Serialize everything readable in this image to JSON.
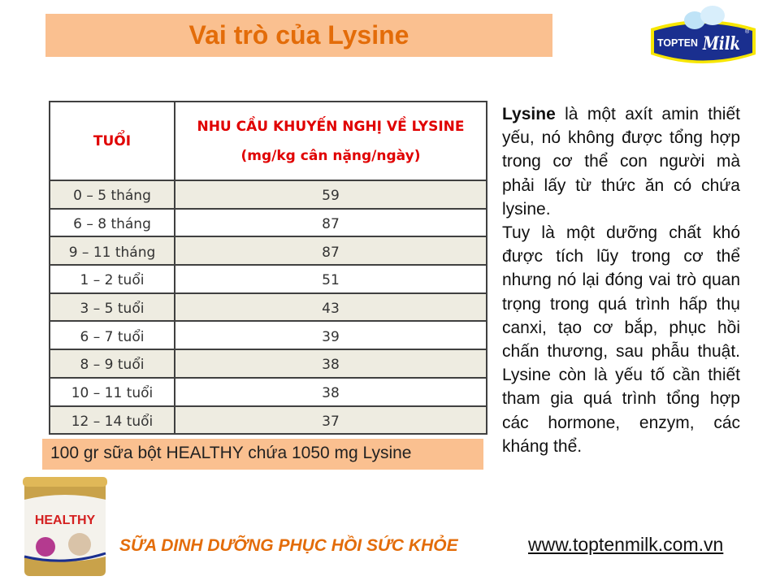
{
  "title": "Vai trò của Lysine",
  "logo": {
    "text_left": "TOPTEN",
    "text_right": "Milk",
    "registered": "®",
    "colors": {
      "navy": "#1a2f8f",
      "yellow": "#f7e600"
    }
  },
  "table": {
    "headers": {
      "age": "TUỔI",
      "requirement_line1": "NHU CẦU KHUYẾN NGHỊ VỀ LYSINE",
      "requirement_line2": "(mg/kg cân nặng/ngày)"
    },
    "rows": [
      {
        "age": "0 – 5 tháng",
        "value": "59"
      },
      {
        "age": "6 – 8 tháng",
        "value": "87"
      },
      {
        "age": "9 – 11 tháng",
        "value": "87"
      },
      {
        "age": "1 – 2 tuổi",
        "value": "51"
      },
      {
        "age": "3 – 5 tuổi",
        "value": "43"
      },
      {
        "age": "6 – 7 tuổi",
        "value": "39"
      },
      {
        "age": "8 – 9 tuổi",
        "value": "38"
      },
      {
        "age": "10 – 11 tuổi",
        "value": "38"
      },
      {
        "age": "12 – 14 tuổi",
        "value": "37"
      }
    ]
  },
  "note": "100 gr sữa bột HEALTHY chứa 1050 mg Lysine",
  "description": {
    "bold_term": "Lysine",
    "para1_rest": " là một axít amin thiết yếu, nó không được tổng hợp trong cơ thể con người mà phải lấy từ thức ăn có chứa lysine.",
    "para2": "Tuy là một dưỡng chất khó được tích lũy trong cơ thể nhưng nó lại đóng vai trò quan trọng trong quá trình hấp thụ canxi, tạo cơ bắp, phục hồi chấn thương, sau phẫu thuật. Lysine còn là yếu tố cần thiết tham gia quá trình tổng hợp các hormone, enzym, các kháng thể."
  },
  "product": {
    "name": "HEALTHY"
  },
  "tagline": "SỮA DINH DƯỠNG PHỤC HỒI SỨC KHỎE",
  "website": "www.toptenmilk.com.vn",
  "colors": {
    "accent_bg": "#fac090",
    "title": "#e36c09",
    "header_red": "#e00000",
    "row_alt": "#eeece1"
  }
}
